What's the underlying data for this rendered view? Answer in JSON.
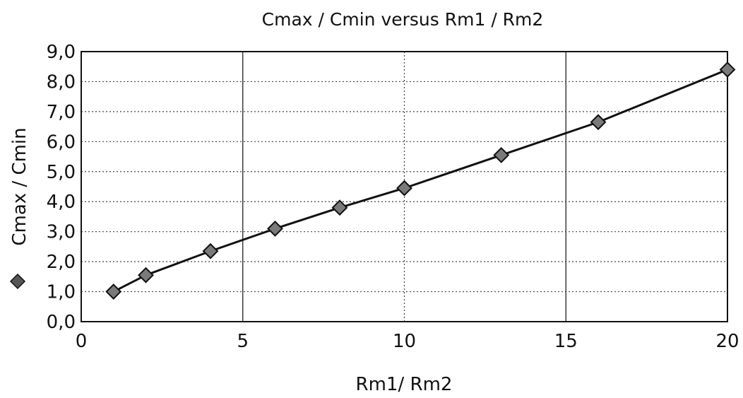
{
  "chart_data": {
    "type": "scatter",
    "title": "Cmax / Cmin versus Rm1 / Rm2",
    "xlabel": "Rm1/ Rm2",
    "ylabel": "Cmax / Cmin",
    "xlim": [
      0,
      20
    ],
    "ylim": [
      0,
      9
    ],
    "x_ticks": [
      0,
      5,
      10,
      15,
      20
    ],
    "y_ticks": [
      "0,0",
      "1,0",
      "2,0",
      "3,0",
      "4,0",
      "5,0",
      "6,0",
      "7,0",
      "8,0",
      "9,0"
    ],
    "grid": true,
    "legend": "left, inline with y-axis label",
    "series": [
      {
        "marker": "diamond",
        "points": [
          {
            "x": 1,
            "y": 1.0
          },
          {
            "x": 2,
            "y": 1.55
          },
          {
            "x": 4,
            "y": 2.35
          },
          {
            "x": 6,
            "y": 3.1
          },
          {
            "x": 8,
            "y": 3.8
          },
          {
            "x": 10,
            "y": 4.45
          },
          {
            "x": 13,
            "y": 5.55
          },
          {
            "x": 16,
            "y": 6.65
          },
          {
            "x": 20,
            "y": 8.4
          }
        ]
      }
    ]
  }
}
